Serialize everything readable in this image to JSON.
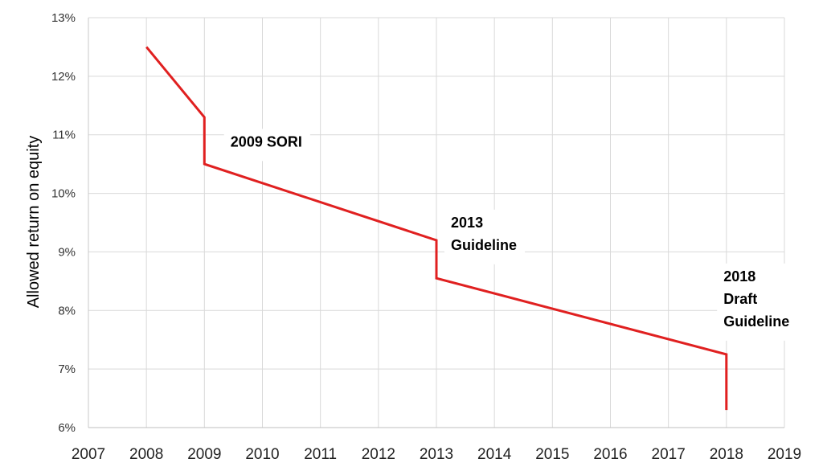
{
  "chart_data": {
    "type": "line",
    "title": "",
    "xlabel": "",
    "ylabel": "Allowed return on equity",
    "xlim": [
      2007,
      2019
    ],
    "ylim": [
      6,
      13
    ],
    "x_ticks": [
      "2007",
      "2008",
      "2009",
      "2010",
      "2011",
      "2012",
      "2013",
      "2014",
      "2015",
      "2016",
      "2017",
      "2018",
      "2019"
    ],
    "y_ticks": [
      "6%",
      "7%",
      "8%",
      "9%",
      "10%",
      "11%",
      "12%",
      "13%"
    ],
    "grid": true,
    "series": [
      {
        "color": "#e02020",
        "x": [
          2008,
          2009,
          2009,
          2013,
          2013,
          2018,
          2018
        ],
        "y": [
          12.5,
          11.3,
          10.5,
          9.2,
          8.55,
          7.25,
          6.3
        ]
      }
    ],
    "annotations": [
      {
        "lines": [
          "2009 SORI"
        ],
        "x": 2009.45,
        "y": 10.8
      },
      {
        "lines": [
          "2013",
          "Guideline"
        ],
        "x": 2013.25,
        "y": 9.42
      },
      {
        "lines": [
          "2018",
          "Draft",
          "Guideline"
        ],
        "x": 2017.95,
        "y": 8.5
      }
    ]
  }
}
